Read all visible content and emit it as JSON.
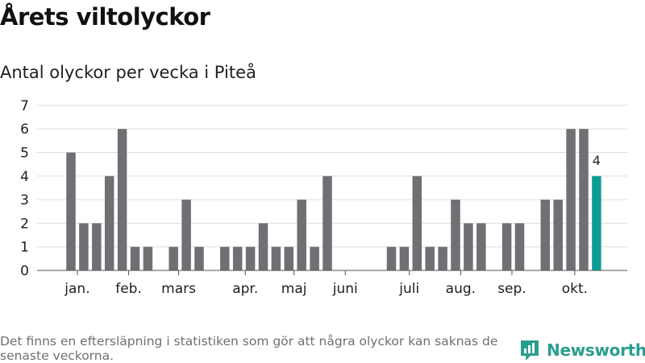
{
  "title": "Årets viltolyckor",
  "subtitle": "Antal olyckor per vecka i Piteå",
  "footnote": "Det finns en eftersläpning i statistiken som gör att några olyckor kan saknas de senaste veckorna.",
  "brand": {
    "name": "Newsworthy",
    "logo_icon": "bar-chart-logo-icon"
  },
  "colors": {
    "bar": "#706f73",
    "highlight": "#0c9e94",
    "grid": "#dddddd",
    "axis": "#555555",
    "brand": "#2a9d8f"
  },
  "chart_data": {
    "type": "bar",
    "title": "Årets viltolyckor",
    "subtitle": "Antal olyckor per vecka i Piteå",
    "xlabel": "",
    "ylabel": "",
    "ylim": [
      0,
      7
    ],
    "yticks": [
      0,
      1,
      2,
      3,
      4,
      5,
      6,
      7
    ],
    "grid": true,
    "x": [
      1,
      2,
      3,
      4,
      5,
      6,
      7,
      8,
      9,
      10,
      11,
      12,
      13,
      14,
      15,
      16,
      17,
      18,
      19,
      20,
      21,
      22,
      23,
      24,
      25,
      26,
      27,
      28,
      29,
      30,
      31,
      32,
      33,
      34,
      35,
      36,
      37,
      38,
      39,
      40,
      41,
      42,
      43
    ],
    "values": [
      5,
      2,
      2,
      4,
      6,
      1,
      1,
      0,
      1,
      3,
      1,
      0,
      1,
      1,
      1,
      2,
      1,
      1,
      3,
      1,
      4,
      0,
      0,
      0,
      0,
      1,
      1,
      4,
      1,
      1,
      3,
      2,
      2,
      0,
      2,
      2,
      0,
      3,
      3,
      6,
      6,
      4,
      null
    ],
    "highlight_index": 41,
    "highlight_label": "4",
    "month_labels": [
      {
        "label": "jan.",
        "position": 1.5
      },
      {
        "label": "feb.",
        "position": 5.5
      },
      {
        "label": "mars",
        "position": 9.4
      },
      {
        "label": "apr.",
        "position": 14.6
      },
      {
        "label": "maj",
        "position": 18.4
      },
      {
        "label": "juni",
        "position": 22.4
      },
      {
        "label": "juli",
        "position": 27.4
      },
      {
        "label": "aug.",
        "position": 31.4
      },
      {
        "label": "sep.",
        "position": 35.4
      },
      {
        "label": "okt.",
        "position": 40.3
      }
    ]
  }
}
